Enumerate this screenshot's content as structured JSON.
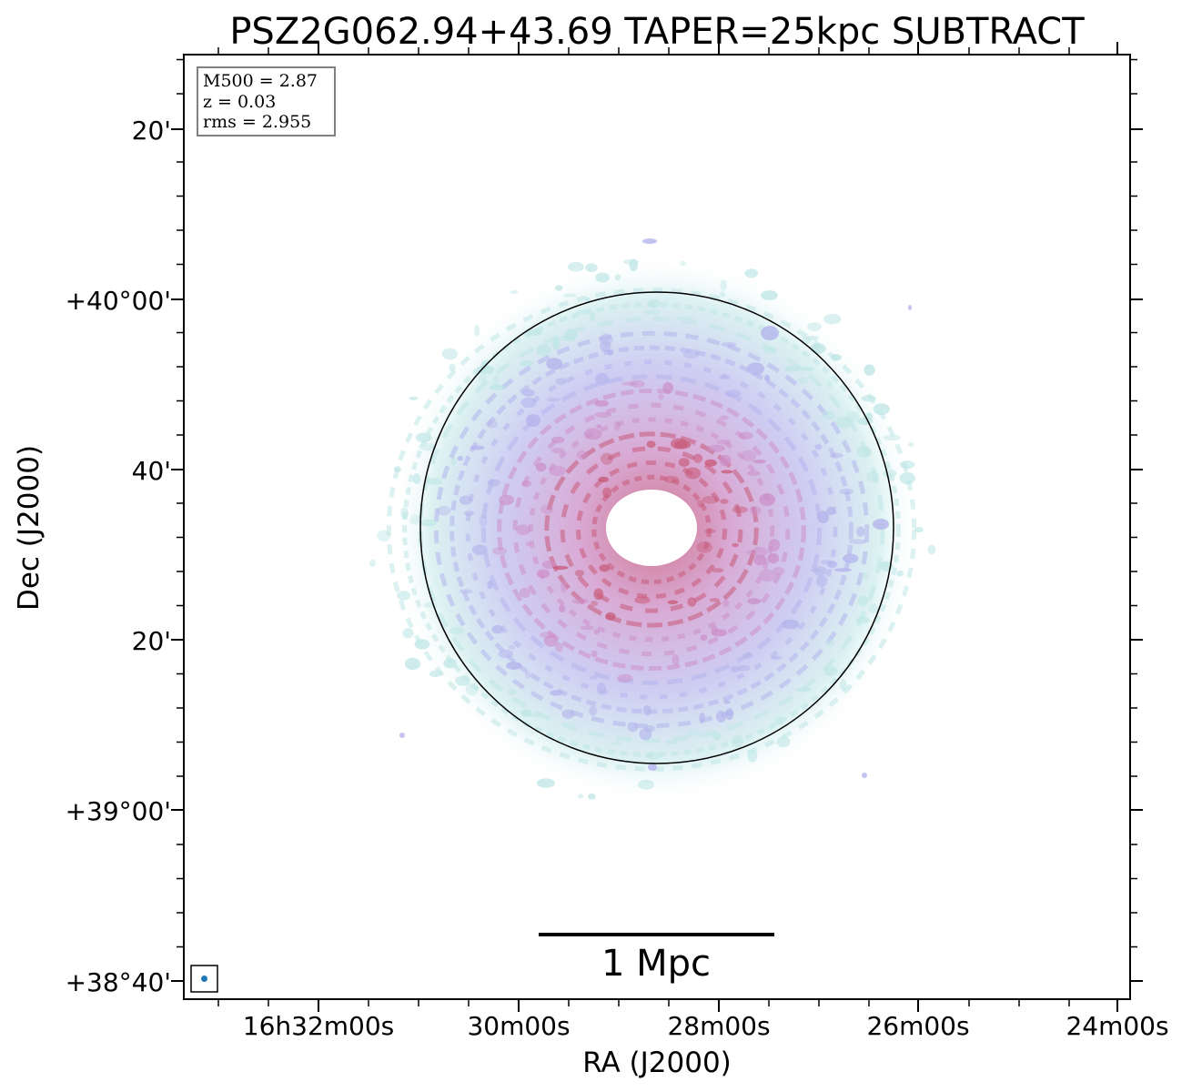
{
  "chart_data": {
    "type": "heatmap",
    "title": "PSZ2G062.94+43.69 TAPER=25kpc SUBTRACT",
    "xlabel": "RA (J2000)",
    "ylabel": "Dec (J2000)",
    "x_tick_labels": [
      "16h32m00s",
      "30m00s",
      "28m00s",
      "26m00s",
      "24m00s"
    ],
    "y_tick_labels": [
      "+38°40'",
      "+39°00'",
      "20'",
      "40'",
      "+40°00'",
      "20'"
    ],
    "y_range_arcmin": [
      -82,
      28
    ],
    "info_box": [
      "M500 = 2.87",
      "z = 0.03",
      "rms = 2.955"
    ],
    "scale_bar_label": "1 Mpc",
    "grid": false,
    "colors": {
      "outer_emission": "#bfe6e6",
      "mid_emission": "#b4b4ec",
      "inner_emission": "#cc8fc8",
      "peak_emission": "#c85a78",
      "beam": "#1f77b4",
      "circle": "#000000"
    }
  }
}
